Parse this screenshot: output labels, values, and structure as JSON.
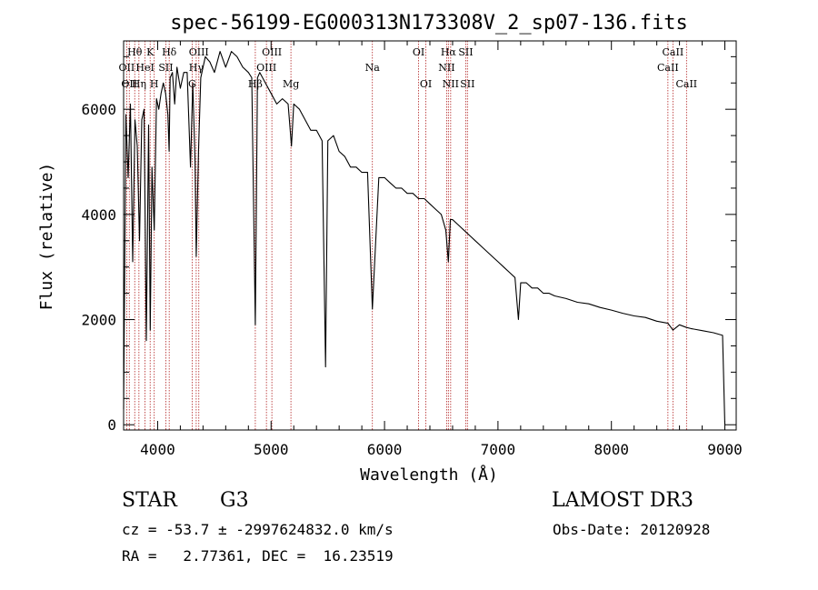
{
  "chart_data": {
    "type": "line",
    "title": "spec-56199-EG000313N173308V_2_sp07-136.fits",
    "xlabel": "Wavelength (Å)",
    "ylabel": "Flux (relative)",
    "xlim": [
      3700,
      9100
    ],
    "ylim": [
      -100,
      7300
    ],
    "xticks": [
      4000,
      5000,
      6000,
      7000,
      8000,
      9000
    ],
    "yticks": [
      0,
      2000,
      4000,
      6000
    ],
    "grid": false,
    "line_color": "#000000",
    "marker_color": "#b22222",
    "series": [
      {
        "name": "flux",
        "x": [
          3700,
          3720,
          3740,
          3760,
          3780,
          3800,
          3820,
          3840,
          3860,
          3880,
          3900,
          3920,
          3935,
          3950,
          3970,
          3990,
          4010,
          4030,
          4050,
          4070,
          4090,
          4101,
          4110,
          4130,
          4150,
          4170,
          4200,
          4230,
          4260,
          4290,
          4310,
          4330,
          4340,
          4360,
          4380,
          4420,
          4460,
          4500,
          4550,
          4600,
          4650,
          4700,
          4750,
          4800,
          4830,
          4861,
          4880,
          4900,
          4950,
          5000,
          5050,
          5100,
          5150,
          5180,
          5200,
          5250,
          5300,
          5350,
          5400,
          5450,
          5480,
          5500,
          5550,
          5600,
          5650,
          5700,
          5750,
          5800,
          5850,
          5893,
          5950,
          6000,
          6050,
          6100,
          6150,
          6200,
          6250,
          6300,
          6350,
          6400,
          6450,
          6500,
          6540,
          6563,
          6580,
          6600,
          6650,
          6700,
          6750,
          6800,
          6850,
          6900,
          6950,
          7000,
          7050,
          7100,
          7150,
          7180,
          7200,
          7250,
          7300,
          7350,
          7400,
          7450,
          7500,
          7600,
          7700,
          7800,
          7900,
          8000,
          8100,
          8200,
          8300,
          8400,
          8498,
          8542,
          8600,
          8662,
          8700,
          8800,
          8900,
          8980,
          9000
        ],
        "y": [
          300,
          5900,
          4700,
          6100,
          3100,
          5800,
          5300,
          3500,
          5800,
          6000,
          1600,
          5700,
          1800,
          4900,
          3700,
          6200,
          6000,
          6300,
          6500,
          6300,
          5900,
          5200,
          6600,
          6700,
          6100,
          6800,
          6400,
          6700,
          6700,
          4900,
          6500,
          5000,
          3200,
          5200,
          6600,
          7000,
          6900,
          6700,
          7100,
          6800,
          7100,
          7000,
          6800,
          6700,
          6600,
          1900,
          6600,
          6700,
          6500,
          6300,
          6100,
          6200,
          6100,
          5300,
          6100,
          6000,
          5800,
          5600,
          5600,
          5400,
          1100,
          5400,
          5500,
          5200,
          5100,
          4900,
          4900,
          4800,
          4800,
          2200,
          4700,
          4700,
          4600,
          4500,
          4500,
          4400,
          4400,
          4300,
          4300,
          4200,
          4100,
          4000,
          3700,
          3100,
          3900,
          3900,
          3800,
          3700,
          3600,
          3500,
          3400,
          3300,
          3200,
          3100,
          3000,
          2900,
          2800,
          2000,
          2700,
          2700,
          2600,
          2600,
          2500,
          2500,
          2450,
          2400,
          2330,
          2300,
          2230,
          2180,
          2120,
          2070,
          2040,
          1970,
          1930,
          1800,
          1900,
          1850,
          1830,
          1790,
          1750,
          1700,
          0
        ]
      }
    ],
    "line_markers": [
      {
        "w": 3727,
        "label": "OII",
        "row": 2
      },
      {
        "w": 3750,
        "label": "OII",
        "row": 3
      },
      {
        "w": 3798,
        "label": "Hθ",
        "row": 1
      },
      {
        "w": 3835,
        "label": "Hη",
        "row": 3
      },
      {
        "w": 3889,
        "label": "HeI",
        "row": 2
      },
      {
        "w": 3934,
        "label": "K",
        "row": 1
      },
      {
        "w": 3970,
        "label": "H",
        "row": 3
      },
      {
        "w": 4072,
        "label": "SII",
        "row": 2
      },
      {
        "w": 4102,
        "label": "Hδ",
        "row": 1
      },
      {
        "w": 4304,
        "label": "G",
        "row": 3
      },
      {
        "w": 4340,
        "label": "Hγ",
        "row": 2
      },
      {
        "w": 4363,
        "label": "OIII",
        "row": 1
      },
      {
        "w": 4861,
        "label": "Hβ",
        "row": 3
      },
      {
        "w": 4959,
        "label": "OIII",
        "row": 2
      },
      {
        "w": 5007,
        "label": "OIII",
        "row": 1
      },
      {
        "w": 5175,
        "label": "Mg",
        "row": 3
      },
      {
        "w": 5893,
        "label": "Na",
        "row": 2
      },
      {
        "w": 6300,
        "label": "OI",
        "row": 1
      },
      {
        "w": 6364,
        "label": "OI",
        "row": 3
      },
      {
        "w": 6548,
        "label": "NII",
        "row": 2
      },
      {
        "w": 6563,
        "label": "Hα",
        "row": 1
      },
      {
        "w": 6583,
        "label": "NII",
        "row": 3
      },
      {
        "w": 6716,
        "label": "SII",
        "row": 1
      },
      {
        "w": 6731,
        "label": "SII",
        "row": 3
      },
      {
        "w": 8498,
        "label": "CaII",
        "row": 2
      },
      {
        "w": 8542,
        "label": "CaII",
        "row": 1
      },
      {
        "w": 8662,
        "label": "CaII",
        "row": 3
      }
    ]
  },
  "info": {
    "object_class": "STAR",
    "subclass": "G3",
    "survey": "LAMOST DR3",
    "cz": "cz = -53.7 ± -2997624832.0 km/s",
    "obs_date": "Obs-Date: 20120928",
    "coords": "RA =   2.77361, DEC =  16.23519"
  }
}
